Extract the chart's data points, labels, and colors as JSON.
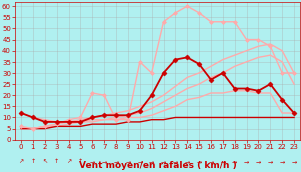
{
  "bg_color": "#b0f0f0",
  "grid_color": "#aaaaaa",
  "xlabel": "Vent moyen/en rafales ( km/h )",
  "xlabel_color": "#cc0000",
  "xlabel_fontsize": 6.5,
  "ylabel_ticks": [
    0,
    5,
    10,
    15,
    20,
    25,
    30,
    35,
    40,
    45,
    50,
    55,
    60
  ],
  "xlim": [
    -0.5,
    23.5
  ],
  "ylim": [
    0,
    62
  ],
  "x": [
    0,
    1,
    2,
    3,
    4,
    5,
    6,
    7,
    8,
    9,
    10,
    11,
    12,
    13,
    14,
    15,
    16,
    17,
    18,
    19,
    20,
    21,
    22,
    23
  ],
  "series": [
    {
      "label": "light_pink_top_flat",
      "y": [
        12,
        10,
        9,
        8,
        8,
        8,
        9,
        9,
        9,
        10,
        10,
        11,
        13,
        15,
        18,
        19,
        21,
        21,
        22,
        22,
        21,
        21,
        12,
        12
      ],
      "color": "#ffaaaa",
      "linewidth": 1.0,
      "marker": null,
      "zorder": 2
    },
    {
      "label": "light_pink_linear_upper",
      "y": [
        5,
        5,
        6,
        7,
        8,
        9,
        10,
        11,
        12,
        13,
        15,
        17,
        20,
        24,
        28,
        30,
        33,
        36,
        38,
        40,
        42,
        43,
        40,
        30
      ],
      "color": "#ffaaaa",
      "linewidth": 1.0,
      "marker": null,
      "zorder": 2
    },
    {
      "label": "light_pink_linear_lower",
      "y": [
        5,
        5,
        6,
        6,
        7,
        8,
        8,
        9,
        10,
        11,
        12,
        14,
        17,
        20,
        23,
        25,
        28,
        30,
        33,
        35,
        37,
        38,
        35,
        25
      ],
      "color": "#ffaaaa",
      "linewidth": 1.0,
      "marker": null,
      "zorder": 2
    },
    {
      "label": "light_pink_with_diamond_peak60",
      "y": [
        6,
        5,
        6,
        7,
        9,
        10,
        21,
        20,
        9,
        9,
        35,
        30,
        53,
        57,
        60,
        57,
        53,
        53,
        53,
        45,
        45,
        42,
        30,
        30
      ],
      "color": "#ffaaaa",
      "linewidth": 1.0,
      "marker": "D",
      "markersize": 2.0,
      "zorder": 3
    },
    {
      "label": "dark_red_jagged_peak37",
      "y": [
        12,
        10,
        8,
        8,
        8,
        8,
        10,
        11,
        11,
        11,
        13,
        20,
        30,
        36,
        37,
        34,
        27,
        30,
        23,
        23,
        22,
        25,
        18,
        12
      ],
      "color": "#cc0000",
      "linewidth": 1.3,
      "marker": "D",
      "markersize": 2.5,
      "zorder": 4
    },
    {
      "label": "dark_red_flat_low",
      "y": [
        5,
        5,
        5,
        6,
        6,
        6,
        7,
        7,
        7,
        8,
        8,
        9,
        9,
        10,
        10,
        10,
        10,
        10,
        10,
        10,
        10,
        10,
        10,
        10
      ],
      "color": "#cc0000",
      "linewidth": 1.0,
      "marker": null,
      "zorder": 2
    }
  ],
  "tick_color": "#cc0000",
  "tick_fontsize": 5.0,
  "arrow_chars": [
    "↗",
    "↑",
    "↖",
    "↑",
    "↗",
    "↑",
    "→",
    "→",
    "→",
    "→",
    "→",
    "→",
    "→",
    "→",
    "→",
    "→",
    "→",
    "→",
    "→",
    "→",
    "→",
    "→",
    "→",
    "→"
  ]
}
